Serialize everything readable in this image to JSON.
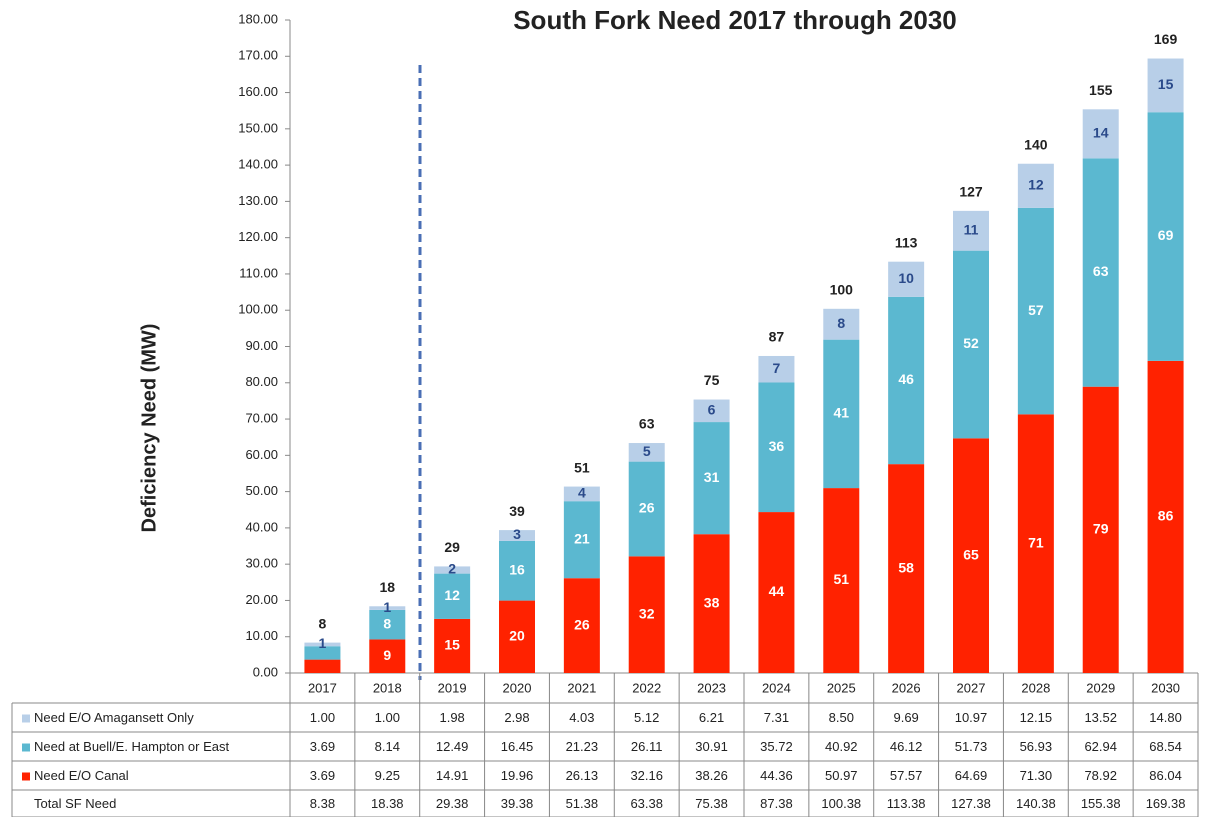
{
  "chart_data": {
    "type": "stacked_bar",
    "title": "South Fork Need 2017 through 2030",
    "y_label": "Deficiency Need (MW)",
    "categories": [
      "2017",
      "2018",
      "2019",
      "2020",
      "2021",
      "2022",
      "2023",
      "2024",
      "2025",
      "2026",
      "2027",
      "2028",
      "2029",
      "2030"
    ],
    "series": [
      {
        "name": "Need E/O Canal",
        "color": "#ff2200",
        "values": [
          3.69,
          9.25,
          14.91,
          19.96,
          26.13,
          32.16,
          38.26,
          44.36,
          50.97,
          57.57,
          64.69,
          71.3,
          78.92,
          86.04
        ],
        "value_labels": [
          null,
          "9",
          "15",
          "20",
          "26",
          "32",
          "38",
          "44",
          "51",
          "58",
          "65",
          "71",
          "79",
          "86"
        ]
      },
      {
        "name": "Need at Buell/E. Hampton or East",
        "color": "#5bb8d0",
        "values": [
          3.69,
          8.14,
          12.49,
          16.45,
          21.23,
          26.11,
          30.91,
          35.72,
          40.92,
          46.12,
          51.73,
          56.93,
          62.94,
          68.54
        ],
        "value_labels": [
          null,
          "8",
          "12",
          "16",
          "21",
          "26",
          "31",
          "36",
          "41",
          "46",
          "52",
          "57",
          "63",
          "69"
        ]
      },
      {
        "name": "Need E/O Amagansett Only",
        "color": "#b8cfe8",
        "values": [
          1.0,
          1.0,
          1.98,
          2.98,
          4.03,
          5.12,
          6.21,
          7.31,
          8.5,
          9.69,
          10.97,
          12.15,
          13.52,
          14.8
        ],
        "value_labels": [
          "1",
          "1",
          "2",
          "3",
          "4",
          "5",
          "6",
          "7",
          "8",
          "10",
          "11",
          "12",
          "14",
          "15"
        ]
      }
    ],
    "totals": {
      "name": "Total SF Need",
      "values": [
        8.38,
        18.38,
        29.38,
        39.38,
        51.38,
        63.38,
        75.38,
        87.38,
        100.38,
        113.38,
        127.38,
        140.38,
        155.38,
        169.38
      ],
      "value_labels": [
        "8",
        "18",
        "29",
        "39",
        "51",
        "63",
        "75",
        "87",
        "100",
        "113",
        "127",
        "140",
        "155",
        "169"
      ]
    },
    "table": {
      "rows": [
        {
          "cells": [
            "1.00",
            "1.00",
            "1.98",
            "2.98",
            "4.03",
            "5.12",
            "6.21",
            "7.31",
            "8.50",
            "9.69",
            "10.97",
            "12.15",
            "13.52",
            "14.80"
          ]
        },
        {
          "cells": [
            "3.69",
            "8.14",
            "12.49",
            "16.45",
            "21.23",
            "26.11",
            "30.91",
            "35.72",
            "40.92",
            "46.12",
            "51.73",
            "56.93",
            "62.94",
            "68.54"
          ]
        },
        {
          "cells": [
            "3.69",
            "9.25",
            "14.91",
            "19.96",
            "26.13",
            "32.16",
            "38.26",
            "44.36",
            "50.97",
            "57.57",
            "64.69",
            "71.30",
            "78.92",
            "86.04"
          ]
        },
        {
          "cells": [
            "8.38",
            "18.38",
            "29.38",
            "39.38",
            "51.38",
            "63.38",
            "75.38",
            "87.38",
            "100.38",
            "113.38",
            "127.38",
            "140.38",
            "155.38",
            "169.38"
          ]
        }
      ]
    },
    "ylim": [
      0,
      180
    ],
    "yticks": [
      {
        "value": 0,
        "label": "0.00"
      },
      {
        "value": 10,
        "label": "10.00"
      },
      {
        "value": 20,
        "label": "20.00"
      },
      {
        "value": 30,
        "label": "30.00"
      },
      {
        "value": 40,
        "label": "40.00"
      },
      {
        "value": 50,
        "label": "50.00"
      },
      {
        "value": 60,
        "label": "60.00"
      },
      {
        "value": 70,
        "label": "70.00"
      },
      {
        "value": 80,
        "label": "80.00"
      },
      {
        "value": 90,
        "label": "90.00"
      },
      {
        "value": 100,
        "label": "100.00"
      },
      {
        "value": 110,
        "label": "110.00"
      },
      {
        "value": 120,
        "label": "120.00"
      },
      {
        "value": 130,
        "label": "130.00"
      },
      {
        "value": 140,
        "label": "140.00"
      },
      {
        "value": 150,
        "label": "150.00"
      },
      {
        "value": 160,
        "label": "160.00"
      },
      {
        "value": 170,
        "label": "170.00"
      },
      {
        "value": 180,
        "label": "180.00"
      }
    ],
    "grid": false
  }
}
